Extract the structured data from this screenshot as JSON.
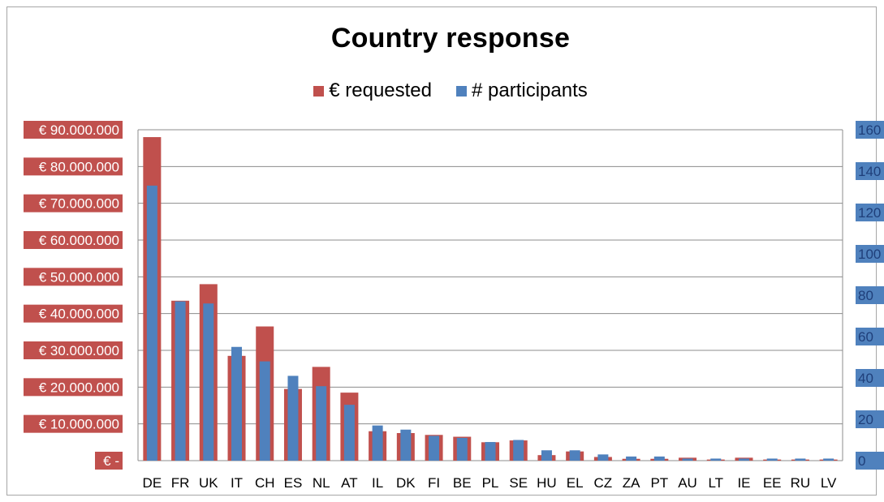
{
  "chart_data": {
    "type": "bar",
    "title": "Country response",
    "categories": [
      "DE",
      "FR",
      "UK",
      "IT",
      "CH",
      "ES",
      "NL",
      "AT",
      "IL",
      "DK",
      "FI",
      "BE",
      "PL",
      "SE",
      "HU",
      "EL",
      "CZ",
      "ZA",
      "PT",
      "AU",
      "LT",
      "IE",
      "EE",
      "RU",
      "LV"
    ],
    "series": [
      {
        "name": "€ requested",
        "color": "#c0504d",
        "axis": "left",
        "values": [
          88000000,
          43500000,
          48000000,
          28500000,
          36500000,
          19500000,
          25500000,
          18500000,
          8000000,
          7500000,
          7000000,
          6500000,
          5000000,
          5500000,
          1500000,
          2500000,
          1000000,
          500000,
          500000,
          800000,
          300000,
          800000,
          300000,
          300000,
          300000
        ]
      },
      {
        "name": "# participants",
        "color": "#4f81bd",
        "axis": "right",
        "values": [
          133,
          77,
          76,
          55,
          48,
          41,
          36,
          27,
          17,
          15,
          12,
          11,
          9,
          10,
          5,
          5,
          3,
          2,
          2,
          1,
          1,
          1,
          1,
          1,
          1
        ]
      }
    ],
    "y_left": {
      "ylim": [
        0,
        90000000
      ],
      "tick_labels": [
        "€ -",
        "€ 10.000.000",
        "€ 20.000.000",
        "€ 30.000.000",
        "€ 40.000.000",
        "€ 50.000.000",
        "€ 60.000.000",
        "€ 70.000.000",
        "€ 80.000.000",
        "€ 90.000.000"
      ],
      "tick_values": [
        0,
        10000000,
        20000000,
        30000000,
        40000000,
        50000000,
        60000000,
        70000000,
        80000000,
        90000000
      ]
    },
    "y_right": {
      "ylim": [
        0,
        160
      ],
      "tick_labels": [
        "0",
        "20",
        "40",
        "60",
        "80",
        "100",
        "120",
        "140",
        "160"
      ],
      "tick_values": [
        0,
        20,
        40,
        60,
        80,
        100,
        120,
        140,
        160
      ]
    },
    "grid": true,
    "legend_position": "top-center"
  }
}
